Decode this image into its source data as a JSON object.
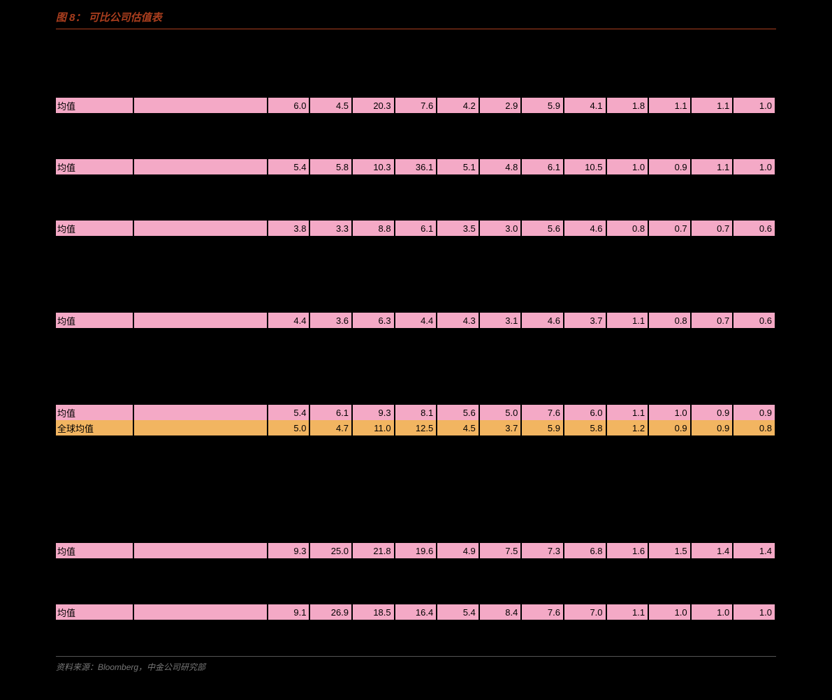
{
  "figure_label": "图 8：",
  "figure_title": "可比公司估值表",
  "source_text": "资料来源：Bloomberg，中金公司研究部",
  "colors": {
    "background": "#000000",
    "title_color": "#AA3E1E",
    "pink_row": "#F4A9C6",
    "orange_row": "#F2B561",
    "text": "#000000",
    "source_text": "#777777"
  },
  "labels": {
    "avg": "均值",
    "global_avg": "全球均值"
  },
  "column_groups": 3,
  "columns_per_group": 4,
  "rows": [
    {
      "type": "blank",
      "height": 4
    },
    {
      "type": "pink",
      "label_key": "avg",
      "g1": [
        "6.0",
        "4.5",
        "20.3",
        "7.6"
      ],
      "g2": [
        "4.2",
        "2.9",
        "5.9",
        "4.1"
      ],
      "g3": [
        "1.8",
        "1.1",
        "1.1",
        "1.0"
      ]
    },
    {
      "type": "blank",
      "height": 3
    },
    {
      "type": "pink",
      "label_key": "avg",
      "g1": [
        "5.4",
        "5.8",
        "10.3",
        "36.1"
      ],
      "g2": [
        "5.1",
        "4.8",
        "6.1",
        "10.5"
      ],
      "g3": [
        "1.0",
        "0.9",
        "1.1",
        "1.0"
      ]
    },
    {
      "type": "blank",
      "height": 3
    },
    {
      "type": "pink",
      "label_key": "avg",
      "g1": [
        "3.8",
        "3.3",
        "8.8",
        "6.1"
      ],
      "g2": [
        "3.5",
        "3.0",
        "5.6",
        "4.6"
      ],
      "g3": [
        "0.8",
        "0.7",
        "0.7",
        "0.6"
      ]
    },
    {
      "type": "blank",
      "height": 5
    },
    {
      "type": "pink",
      "label_key": "avg",
      "g1": [
        "4.4",
        "3.6",
        "6.3",
        "4.4"
      ],
      "g2": [
        "4.3",
        "3.1",
        "4.6",
        "3.7"
      ],
      "g3": [
        "1.1",
        "0.8",
        "0.7",
        "0.6"
      ]
    },
    {
      "type": "blank",
      "height": 5
    },
    {
      "type": "pink",
      "label_key": "avg",
      "g1": [
        "5.4",
        "6.1",
        "9.3",
        "8.1"
      ],
      "g2": [
        "5.6",
        "5.0",
        "7.6",
        "6.0"
      ],
      "g3": [
        "1.1",
        "1.0",
        "0.9",
        "0.9"
      ]
    },
    {
      "type": "orange",
      "label_key": "global_avg",
      "g1": [
        "5.0",
        "4.7",
        "11.0",
        "12.5"
      ],
      "g2": [
        "4.5",
        "3.7",
        "5.9",
        "5.8"
      ],
      "g3": [
        "1.2",
        "0.9",
        "0.9",
        "0.8"
      ]
    },
    {
      "type": "blank",
      "height": 7
    },
    {
      "type": "pink",
      "label_key": "avg",
      "g1": [
        "9.3",
        "25.0",
        "21.8",
        "19.6"
      ],
      "g2": [
        "4.9",
        "7.5",
        "7.3",
        "6.8"
      ],
      "g3": [
        "1.6",
        "1.5",
        "1.4",
        "1.4"
      ]
    },
    {
      "type": "blank",
      "height": 3
    },
    {
      "type": "pink",
      "label_key": "avg",
      "g1": [
        "9.1",
        "26.9",
        "18.5",
        "16.4"
      ],
      "g2": [
        "5.4",
        "8.4",
        "7.6",
        "7.0"
      ],
      "g3": [
        "1.1",
        "1.0",
        "1.0",
        "1.0"
      ]
    },
    {
      "type": "blank",
      "height": 2
    }
  ]
}
